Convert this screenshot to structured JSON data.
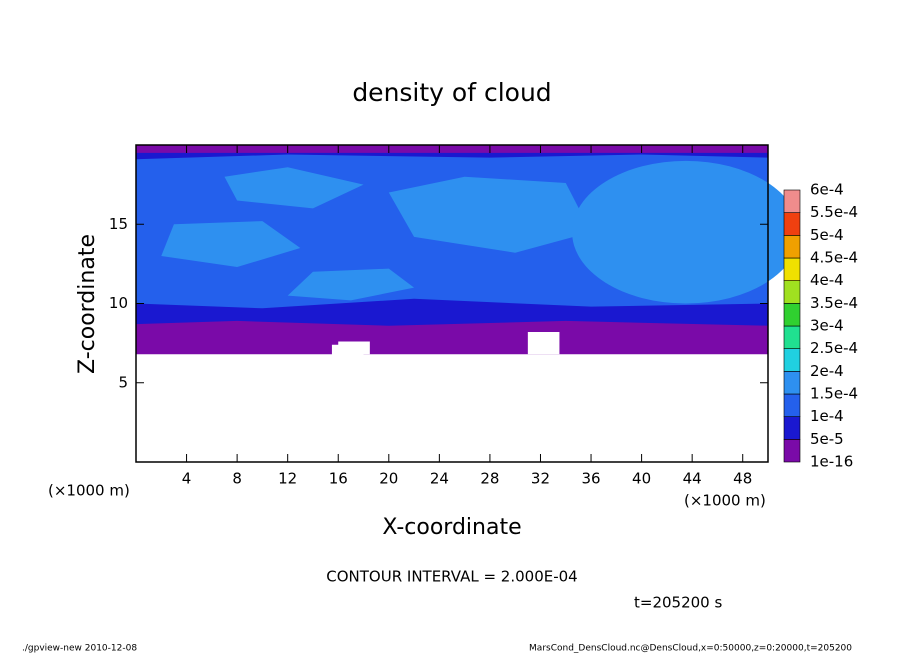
{
  "chart_data": {
    "type": "contour",
    "title": "density of cloud",
    "x_label": "X-coordinate",
    "y_label": "Z-coordinate",
    "x_unit": "(×1000 m)",
    "y_unit": "(×1000 m)",
    "xlim": [
      0,
      50
    ],
    "ylim": [
      0,
      20
    ],
    "xticks": [
      4,
      8,
      12,
      16,
      20,
      24,
      28,
      32,
      36,
      40,
      44,
      48
    ],
    "yticks": [
      5,
      10,
      15
    ],
    "levels": [
      {
        "value": 1e-16,
        "label": "1e-16"
      },
      {
        "value": 5e-05,
        "label": "5e-5"
      },
      {
        "value": 0.0001,
        "label": "1e-4"
      },
      {
        "value": 0.00015,
        "label": "1.5e-4"
      },
      {
        "value": 0.0002,
        "label": "2e-4"
      },
      {
        "value": 0.00025,
        "label": "2.5e-4"
      },
      {
        "value": 0.0003,
        "label": "3e-4"
      },
      {
        "value": 0.00035,
        "label": "3.5e-4"
      },
      {
        "value": 0.0004,
        "label": "4e-4"
      },
      {
        "value": 0.00045,
        "label": "4.5e-4"
      },
      {
        "value": 0.0005,
        "label": "5e-4"
      },
      {
        "value": 0.00055,
        "label": "5.5e-4"
      },
      {
        "value": 0.0006,
        "label": "6e-4"
      }
    ],
    "colors": [
      "#7a0aa8",
      "#1a18d0",
      "#2460ec",
      "#2e90f0",
      "#20d0e0",
      "#20e090",
      "#30d030",
      "#a0e020",
      "#f0e000",
      "#f0a000",
      "#f04010",
      "#f08c8c"
    ],
    "contour_interval": "CONTOUR INTERVAL = 2.000E-04",
    "time": "t=205200 s",
    "footer_left": "./gpview-new  2010-12-08",
    "footer_right": "MarsCond_DensCloud.nc@DensCloud,x=0:50000,z=0:20000,t=205200"
  }
}
